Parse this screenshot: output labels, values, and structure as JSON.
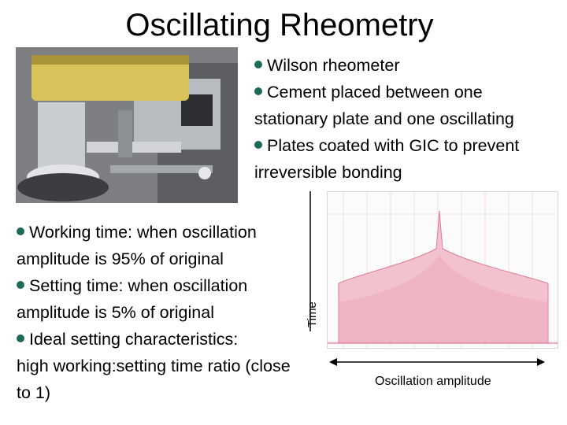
{
  "title": "Oscillating Rheometry",
  "top_bullets": [
    {
      "lines": [
        "Wilson rheometer"
      ]
    },
    {
      "lines": [
        "Cement placed between one",
        "stationary plate and one oscillating"
      ]
    },
    {
      "lines": [
        "Plates coated with GIC to prevent",
        "irreversible bonding"
      ]
    }
  ],
  "bottom_bullets": [
    {
      "lines": [
        "Working time: when oscillation",
        "amplitude is 95% of original"
      ]
    },
    {
      "lines": [
        "Setting time: when oscillation",
        "amplitude is 5% of original"
      ]
    },
    {
      "lines": [
        "Ideal setting characteristics:",
        "high working:setting time ratio (close",
        "to 1)"
      ]
    }
  ],
  "graph": {
    "y_axis_label": "Time",
    "x_axis_label": "Oscillation amplitude",
    "trace_color": "#e07a95"
  },
  "colors": {
    "bullet": "#1e6b55"
  }
}
